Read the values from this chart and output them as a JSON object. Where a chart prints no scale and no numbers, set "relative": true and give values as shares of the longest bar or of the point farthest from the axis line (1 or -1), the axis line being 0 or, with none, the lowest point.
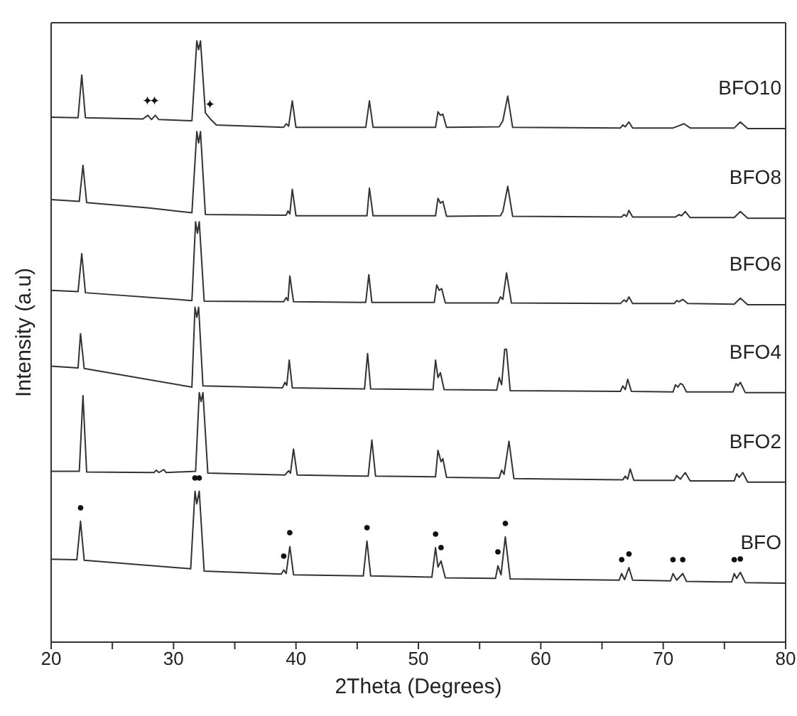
{
  "chart_data": {
    "type": "line",
    "relative": true,
    "xlabel": "2Theta (Degrees)",
    "ylabel": "Intensity (a.u)",
    "xlim": [
      20,
      80
    ],
    "xticks": [
      20,
      {
        "value": 25,
        "label": null
      },
      30,
      {
        "value": 35,
        "label": null
      },
      40,
      {
        "value": 45,
        "label": null
      },
      50,
      {
        "value": 55,
        "label": null
      },
      60,
      {
        "value": 65,
        "label": null
      },
      70,
      {
        "value": 75,
        "label": null
      },
      80
    ],
    "legend": false,
    "marker": "none",
    "line_style": "solid",
    "series": [
      {
        "name": "BFO10",
        "color": "#333333",
        "x": [
          20,
          22.2,
          22.5,
          22.8,
          27.5,
          27.9,
          28.2,
          28.5,
          28.8,
          31.5,
          31.9,
          32.05,
          32.2,
          32.6,
          33.0,
          33.5,
          39.0,
          39.2,
          39.4,
          39.7,
          40.0,
          45.7,
          46.0,
          46.3,
          51.4,
          51.6,
          51.8,
          52.0,
          52.3,
          56.6,
          56.9,
          57.3,
          57.7,
          66.5,
          66.7,
          66.9,
          67.2,
          67.5,
          70.8,
          71.2,
          71.7,
          72.2,
          75.8,
          76.3,
          76.9,
          80
        ],
        "values": [
          0.873,
          0.872,
          0.943,
          0.872,
          0.87,
          0.876,
          0.869,
          0.876,
          0.869,
          0.867,
          1.0,
          0.985,
          1.0,
          0.88,
          0.87,
          0.86,
          0.856,
          0.862,
          0.858,
          0.9,
          0.856,
          0.856,
          0.9,
          0.856,
          0.856,
          0.882,
          0.876,
          0.878,
          0.856,
          0.857,
          0.867,
          0.908,
          0.856,
          0.855,
          0.86,
          0.857,
          0.865,
          0.855,
          0.855,
          0.858,
          0.862,
          0.855,
          0.855,
          0.865,
          0.854,
          0.854
        ]
      },
      {
        "name": "BFO8",
        "color": "#333333",
        "x": [
          20,
          22.3,
          22.6,
          22.9,
          28,
          31.5,
          31.9,
          32.05,
          32.2,
          32.6,
          39.2,
          39.35,
          39.5,
          39.7,
          40.0,
          45.8,
          46.0,
          46.3,
          51.4,
          51.6,
          51.8,
          52.0,
          52.3,
          56.7,
          56.9,
          57.3,
          57.7,
          66.6,
          66.8,
          67.0,
          67.2,
          67.5,
          71.0,
          71.3,
          71.5,
          71.8,
          72.2,
          75.8,
          76.3,
          76.9,
          80
        ],
        "values": [
          0.736,
          0.733,
          0.793,
          0.731,
          0.722,
          0.714,
          0.849,
          0.83,
          0.849,
          0.711,
          0.71,
          0.717,
          0.712,
          0.753,
          0.709,
          0.709,
          0.755,
          0.709,
          0.709,
          0.738,
          0.73,
          0.733,
          0.708,
          0.709,
          0.716,
          0.758,
          0.708,
          0.707,
          0.711,
          0.708,
          0.718,
          0.707,
          0.707,
          0.711,
          0.709,
          0.716,
          0.706,
          0.706,
          0.716,
          0.705,
          0.705
        ]
      },
      {
        "name": "BFO6",
        "color": "#333333",
        "x": [
          20,
          22.2,
          22.5,
          22.8,
          31.5,
          31.8,
          31.95,
          32.1,
          32.5,
          39.0,
          39.2,
          39.35,
          39.5,
          39.8,
          45.7,
          45.95,
          46.2,
          51.3,
          51.5,
          51.7,
          51.9,
          52.2,
          56.5,
          56.7,
          56.9,
          57.2,
          57.6,
          66.5,
          66.8,
          67.0,
          67.2,
          67.5,
          70.9,
          71.1,
          71.3,
          71.6,
          72.0,
          75.8,
          76.3,
          76.9,
          80
        ],
        "values": [
          0.585,
          0.583,
          0.646,
          0.581,
          0.568,
          0.699,
          0.68,
          0.699,
          0.567,
          0.566,
          0.573,
          0.568,
          0.609,
          0.566,
          0.565,
          0.611,
          0.565,
          0.565,
          0.594,
          0.585,
          0.588,
          0.564,
          0.564,
          0.574,
          0.57,
          0.614,
          0.564,
          0.563,
          0.569,
          0.566,
          0.574,
          0.563,
          0.563,
          0.568,
          0.566,
          0.57,
          0.563,
          0.562,
          0.572,
          0.561,
          0.561
        ]
      },
      {
        "name": "BFO4",
        "color": "#333333",
        "x": [
          20,
          22.2,
          22.4,
          22.7,
          31.5,
          31.75,
          31.9,
          32.05,
          32.4,
          38.9,
          39.1,
          39.25,
          39.45,
          39.7,
          45.6,
          45.85,
          46.1,
          51.2,
          51.4,
          51.6,
          51.8,
          52.1,
          56.4,
          56.6,
          56.8,
          57.05,
          57.2,
          57.5,
          66.5,
          66.7,
          66.9,
          67.1,
          67.4,
          70.8,
          71.0,
          71.2,
          71.4,
          71.6,
          71.9,
          75.7,
          75.95,
          76.1,
          76.3,
          76.7,
          80
        ],
        "values": [
          0.459,
          0.456,
          0.513,
          0.455,
          0.424,
          0.557,
          0.54,
          0.557,
          0.426,
          0.423,
          0.432,
          0.427,
          0.469,
          0.423,
          0.421,
          0.48,
          0.421,
          0.42,
          0.469,
          0.44,
          0.448,
          0.42,
          0.419,
          0.44,
          0.428,
          0.487,
          0.487,
          0.418,
          0.417,
          0.426,
          0.42,
          0.437,
          0.417,
          0.416,
          0.428,
          0.424,
          0.43,
          0.428,
          0.416,
          0.416,
          0.43,
          0.426,
          0.432,
          0.415,
          0.415
        ]
      },
      {
        "name": "BFO2",
        "color": "#333333",
        "x": [
          20,
          22.3,
          22.6,
          22.9,
          28.4,
          28.6,
          28.8,
          29.2,
          29.4,
          31.8,
          32.1,
          32.25,
          32.4,
          32.8,
          39.1,
          39.4,
          39.55,
          39.8,
          40.1,
          45.9,
          46.2,
          46.5,
          51.4,
          51.6,
          51.85,
          52.0,
          52.3,
          56.6,
          56.8,
          57.0,
          57.4,
          57.8,
          66.7,
          66.9,
          67.1,
          67.3,
          67.6,
          70.9,
          71.1,
          71.4,
          71.8,
          72.2,
          75.8,
          76.0,
          76.2,
          76.5,
          76.9,
          80
        ],
        "values": [
          0.284,
          0.284,
          0.41,
          0.283,
          0.282,
          0.286,
          0.282,
          0.287,
          0.282,
          0.284,
          0.415,
          0.4,
          0.415,
          0.281,
          0.278,
          0.285,
          0.281,
          0.321,
          0.278,
          0.276,
          0.336,
          0.276,
          0.275,
          0.319,
          0.3,
          0.305,
          0.274,
          0.273,
          0.286,
          0.279,
          0.334,
          0.272,
          0.27,
          0.276,
          0.271,
          0.288,
          0.269,
          0.269,
          0.277,
          0.271,
          0.282,
          0.268,
          0.268,
          0.28,
          0.274,
          0.282,
          0.266,
          0.266
        ]
      },
      {
        "name": "BFO",
        "color": "#333333",
        "x": [
          20,
          22.1,
          22.4,
          22.7,
          31.4,
          31.75,
          31.9,
          32.1,
          32.5,
          38.8,
          39.0,
          39.2,
          39.5,
          39.8,
          45.5,
          45.8,
          46.1,
          51.1,
          51.4,
          51.6,
          51.85,
          52.2,
          56.3,
          56.5,
          56.75,
          57.1,
          57.5,
          66.4,
          66.6,
          66.85,
          67.2,
          67.5,
          70.6,
          70.8,
          71.1,
          71.6,
          71.9,
          75.6,
          75.8,
          76.0,
          76.3,
          76.7,
          80
        ],
        "values": [
          0.138,
          0.137,
          0.201,
          0.136,
          0.122,
          0.251,
          0.23,
          0.251,
          0.118,
          0.113,
          0.12,
          0.114,
          0.159,
          0.112,
          0.11,
          0.168,
          0.11,
          0.108,
          0.157,
          0.125,
          0.135,
          0.107,
          0.106,
          0.127,
          0.112,
          0.175,
          0.105,
          0.103,
          0.114,
          0.104,
          0.124,
          0.103,
          0.102,
          0.114,
          0.103,
          0.114,
          0.101,
          0.1,
          0.114,
          0.106,
          0.116,
          0.099,
          0.098
        ]
      }
    ],
    "annotations": [
      {
        "text": "●",
        "x": 22.4,
        "y": 0.201
      },
      {
        "text": "●",
        "x": 31.75,
        "y": 0.251
      },
      {
        "text": "●",
        "x": 32.1,
        "y": 0.251
      },
      {
        "text": "●",
        "x": 39.0,
        "y": 0.12
      },
      {
        "text": "●",
        "x": 39.5,
        "y": 0.159
      },
      {
        "text": "●",
        "x": 45.8,
        "y": 0.168
      },
      {
        "text": "●",
        "x": 51.4,
        "y": 0.157
      },
      {
        "text": "●",
        "x": 51.85,
        "y": 0.135
      },
      {
        "text": "●",
        "x": 56.5,
        "y": 0.127
      },
      {
        "text": "●",
        "x": 57.1,
        "y": 0.175
      },
      {
        "text": "●",
        "x": 66.6,
        "y": 0.114
      },
      {
        "text": "●",
        "x": 67.2,
        "y": 0.124
      },
      {
        "text": "●",
        "x": 70.8,
        "y": 0.114
      },
      {
        "text": "●",
        "x": 71.6,
        "y": 0.114
      },
      {
        "text": "●",
        "x": 75.8,
        "y": 0.114
      },
      {
        "text": "●",
        "x": 76.3,
        "y": 0.116
      },
      {
        "text": "✦",
        "x": 27.9,
        "y": 0.876
      },
      {
        "text": "✦",
        "x": 28.5,
        "y": 0.876
      },
      {
        "text": "✦",
        "x": 33.0,
        "y": 0.87
      }
    ]
  }
}
